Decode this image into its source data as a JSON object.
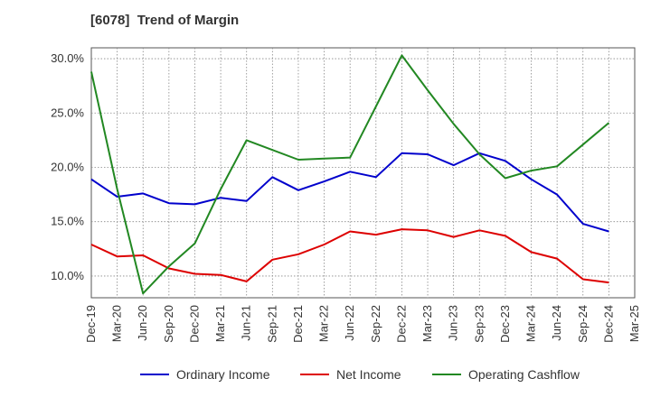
{
  "chart_data": {
    "type": "line",
    "title": "[6078]  Trend of Margin",
    "xlabel": "",
    "ylabel": "",
    "x": [
      "Dec-19",
      "Mar-20",
      "Jun-20",
      "Sep-20",
      "Dec-20",
      "Mar-21",
      "Jun-21",
      "Sep-21",
      "Dec-21",
      "Mar-22",
      "Jun-22",
      "Sep-22",
      "Dec-22",
      "Mar-23",
      "Jun-23",
      "Sep-23",
      "Dec-23",
      "Mar-24",
      "Jun-24",
      "Sep-24",
      "Dec-24",
      "Mar-25"
    ],
    "ylim": [
      8.0,
      31.0
    ],
    "yticks": [
      10.0,
      15.0,
      20.0,
      25.0,
      30.0
    ],
    "ytick_labels": [
      "10.0%",
      "15.0%",
      "20.0%",
      "25.0%",
      "30.0%"
    ],
    "grid": true,
    "legend_position": "bottom",
    "series": [
      {
        "name": "Ordinary Income",
        "color": "#0000cc",
        "values": [
          18.9,
          17.3,
          17.6,
          16.7,
          16.6,
          17.2,
          16.9,
          19.1,
          17.9,
          18.7,
          19.6,
          19.1,
          21.3,
          21.2,
          20.2,
          21.3,
          20.6,
          18.9,
          17.5,
          14.8,
          14.1,
          null
        ]
      },
      {
        "name": "Net Income",
        "color": "#dd0000",
        "values": [
          12.9,
          11.8,
          11.9,
          10.7,
          10.2,
          10.1,
          9.5,
          11.5,
          12.0,
          12.9,
          14.1,
          13.8,
          14.3,
          14.2,
          13.6,
          14.2,
          13.7,
          12.2,
          11.6,
          9.7,
          9.4,
          null
        ]
      },
      {
        "name": "Operating Cashflow",
        "color": "#228822",
        "values": [
          28.8,
          18.0,
          8.4,
          10.9,
          13.0,
          18.0,
          22.5,
          21.6,
          20.7,
          20.8,
          20.9,
          25.6,
          30.3,
          27.1,
          24.0,
          21.2,
          19.0,
          19.7,
          20.1,
          22.1,
          24.1,
          null
        ]
      }
    ]
  }
}
